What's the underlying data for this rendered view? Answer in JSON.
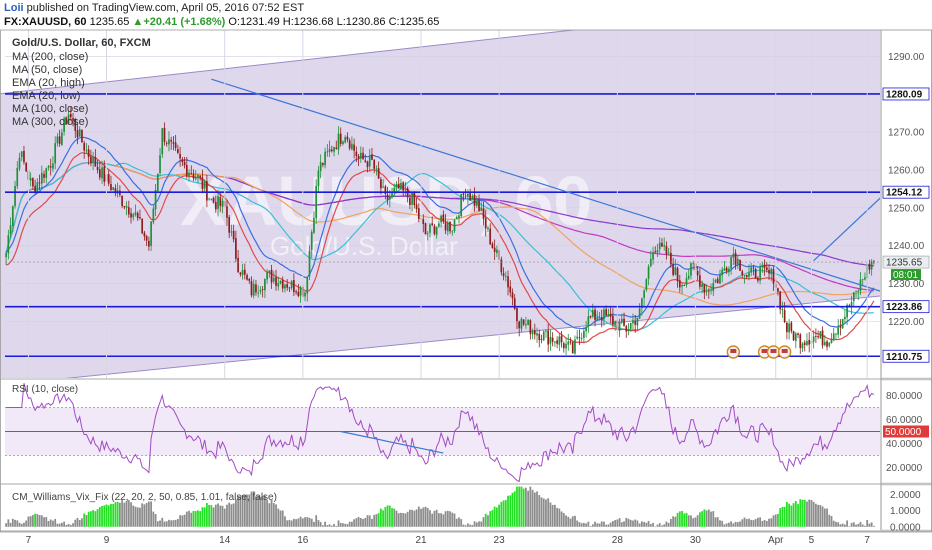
{
  "header": {
    "author": "Loii",
    "published_text": "published on TradingView.com, April 05, 2016 07:52 EST",
    "symbol": "FX:XAUUSD, 60",
    "last": "1235.65",
    "change": "+20.41 (+1.68%)",
    "open": "O:1231.49",
    "high": "H:1236.68",
    "low": "L:1230.86",
    "close": "C:1235.65"
  },
  "legend": [
    "Gold/U.S. Dollar, 60, FXCM",
    "MA (200, close)",
    "MA (50, close)",
    "EMA (20, high)",
    "EMA (20, low)",
    "MA (100, close)",
    "MA (300, close)"
  ],
  "watermark": {
    "symbol": "XAUUSD, 60",
    "name": "Gold/U.S. Dollar"
  },
  "colors": {
    "up": "#1f8f3a",
    "down": "#8e1c1c",
    "channel_fill": "#d9d1ea",
    "h_line": "#1a1ad9",
    "trend": "#3d78d6",
    "ma200": "#c238c2",
    "ma50": "#38c1d6",
    "ema_high": "#3b6fe0",
    "ema_low": "#e04a4a",
    "ma100": "#f0a35c",
    "ma300": "#8a38cc",
    "rsi": "#a24cc4",
    "vix_green": "#24e024",
    "vix_gray": "#8c8c8c"
  },
  "chart_data": [
    {
      "type": "candlestick",
      "title": "Gold/U.S. Dollar, 60, FXCM",
      "x_tick_labels": [
        "7",
        "9",
        "14",
        "16",
        "21",
        "23",
        "28",
        "30",
        "Apr",
        "5",
        "7"
      ],
      "y_ticks": [
        1220,
        1230,
        1240,
        1250,
        1260,
        1270,
        1280,
        1290
      ],
      "ylim": [
        1205,
        1297
      ],
      "horizontal_levels": [
        1280.09,
        1254.12,
        1223.86,
        1210.75
      ],
      "last_price": 1235.65,
      "countdown_label": "08:01",
      "close_anchors": [
        [
          0,
          1238
        ],
        [
          6,
          1265
        ],
        [
          12,
          1255
        ],
        [
          20,
          1262
        ],
        [
          28,
          1275
        ],
        [
          36,
          1265
        ],
        [
          44,
          1258
        ],
        [
          52,
          1252
        ],
        [
          58,
          1248
        ],
        [
          64,
          1240
        ],
        [
          70,
          1270
        ],
        [
          78,
          1262
        ],
        [
          86,
          1258
        ],
        [
          92,
          1252
        ],
        [
          98,
          1250
        ],
        [
          104,
          1235
        ],
        [
          110,
          1228
        ],
        [
          118,
          1232
        ],
        [
          126,
          1230
        ],
        [
          134,
          1228
        ],
        [
          140,
          1260
        ],
        [
          146,
          1266
        ],
        [
          152,
          1270
        ],
        [
          158,
          1263
        ],
        [
          164,
          1262
        ],
        [
          170,
          1252
        ],
        [
          176,
          1255
        ],
        [
          182,
          1252
        ],
        [
          188,
          1243
        ],
        [
          194,
          1246
        ],
        [
          200,
          1245
        ],
        [
          206,
          1255
        ],
        [
          212,
          1250
        ],
        [
          218,
          1240
        ],
        [
          224,
          1232
        ],
        [
          230,
          1220
        ],
        [
          236,
          1218
        ],
        [
          242,
          1216
        ],
        [
          248,
          1215
        ],
        [
          254,
          1212
        ],
        [
          260,
          1220
        ],
        [
          266,
          1222
        ],
        [
          272,
          1220
        ],
        [
          278,
          1218
        ],
        [
          284,
          1222
        ],
        [
          290,
          1240
        ],
        [
          296,
          1238
        ],
        [
          302,
          1230
        ],
        [
          308,
          1234
        ],
        [
          314,
          1228
        ],
        [
          320,
          1232
        ],
        [
          326,
          1238
        ],
        [
          332,
          1232
        ],
        [
          338,
          1233
        ],
        [
          344,
          1232
        ],
        [
          350,
          1218
        ],
        [
          356,
          1215
        ],
        [
          362,
          1216
        ],
        [
          368,
          1215
        ],
        [
          374,
          1220
        ],
        [
          380,
          1226
        ],
        [
          386,
          1234
        ],
        [
          389,
          1236
        ]
      ],
      "trendlines": [
        {
          "name": "channel-upper",
          "points": [
            [
              -5,
              1280
            ],
            [
              300,
              1300
            ]
          ]
        },
        {
          "name": "channel-lower",
          "points": [
            [
              -5,
              1203
            ],
            [
              389,
              1226.5
            ]
          ]
        },
        {
          "name": "downtrend",
          "points": [
            [
              92,
              1284
            ],
            [
              397,
              1227
            ]
          ]
        },
        {
          "name": "projection",
          "points": [
            [
              362,
              1236
            ],
            [
              398,
              1256
            ]
          ]
        }
      ]
    },
    {
      "type": "line",
      "title": "RSI (10, close)",
      "y_ticks": [
        20,
        40,
        50,
        60,
        80
      ],
      "y_tick_labels": [
        "20.0000",
        "40.0000",
        "50.0000",
        "60.0000",
        "80.0000"
      ],
      "ylim": [
        7,
        93
      ],
      "current_value": "50.0000",
      "levels": [
        70,
        30
      ],
      "divergence_line": [
        [
          150,
          50
        ],
        [
          196,
          32
        ]
      ]
    },
    {
      "type": "bar",
      "title": "CM_Williams_Vix_Fix (22, 20, 2, 50, 0.85, 1.01, false, false)",
      "y_ticks": [
        0,
        1,
        2
      ],
      "y_tick_labels": [
        "0.0000",
        "1.0000",
        "2.0000"
      ],
      "ylim": [
        -0.2,
        2.6
      ]
    }
  ]
}
